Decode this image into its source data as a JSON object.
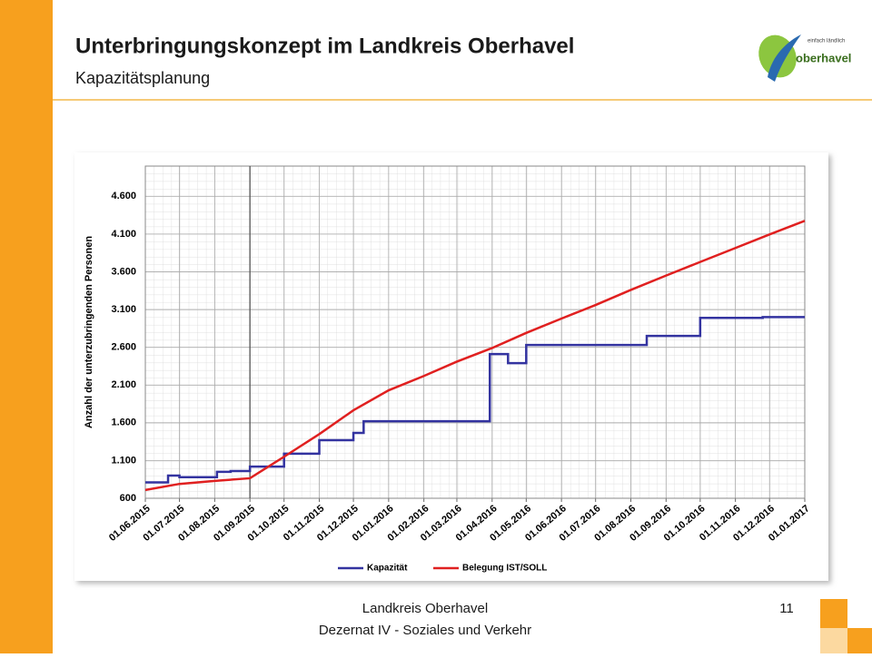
{
  "header": {
    "title": "Unterbringungskonzept im Landkreis Oberhavel",
    "subtitle": "Kapazitätsplanung",
    "logo_text": "oberhavel",
    "logo_tagline": "einfach ländlich"
  },
  "footer": {
    "line1": "Landkreis Oberhavel",
    "line2": "Dezernat IV - Soziales und Verkehr",
    "page": "11"
  },
  "chart_data": {
    "type": "line",
    "drawstyle_series0": "steps-post",
    "ylabel": "Anzahl der unterzubringenden Personen",
    "xlim": [
      "01.06.2015",
      "01.01.2017"
    ],
    "xticks": [
      "01.06.2015",
      "01.07.2015",
      "01.08.2015",
      "01.09.2015",
      "01.10.2015",
      "01.11.2015",
      "01.12.2015",
      "01.01.2016",
      "01.02.2016",
      "01.03.2016",
      "01.04.2016",
      "01.05.2016",
      "01.06.2016",
      "01.07.2016",
      "01.08.2016",
      "01.09.2016",
      "01.10.2016",
      "01.11.2016",
      "01.12.2016",
      "01.01.2017"
    ],
    "ylim": [
      600,
      5000
    ],
    "yticks": [
      600,
      {
        "value": 1100,
        "label": "1.100"
      },
      {
        "value": 1600,
        "label": "1.600"
      },
      {
        "value": 2100,
        "label": "2.100"
      },
      {
        "value": 2600,
        "label": "2.600"
      },
      {
        "value": 3100,
        "label": "3.100"
      },
      {
        "value": 3600,
        "label": "3.600"
      },
      {
        "value": 4100,
        "label": "4.100"
      },
      {
        "value": 4600,
        "label": "4.600"
      }
    ],
    "grid": true,
    "vline": "01.09.2015",
    "legend": "bottom",
    "series": [
      {
        "name": "Kapazität",
        "color": "#3333a0",
        "x": [
          "01.06.2015",
          "21.06.2015",
          "01.07.2015",
          "03.08.2015",
          "15.08.2015",
          "01.09.2015",
          "01.10.2015",
          "01.11.2015",
          "01.12.2015",
          "10.12.2015",
          "30.03.2016",
          "15.04.2016",
          "01.05.2016",
          "15.08.2016",
          "01.10.2016",
          "25.11.2016",
          "01.01.2017"
        ],
        "values": [
          810,
          900,
          880,
          950,
          960,
          1020,
          1190,
          1370,
          1465,
          1620,
          2510,
          2390,
          2630,
          2750,
          2990,
          3000,
          3000
        ]
      },
      {
        "name": "Belegung IST/SOLL",
        "color": "#e02020",
        "x": [
          "01.06.2015",
          "01.07.2015",
          "01.08.2015",
          "01.09.2015",
          "01.10.2015",
          "01.11.2015",
          "01.12.2015",
          "01.01.2016",
          "01.02.2016",
          "01.03.2016",
          "01.04.2016",
          "01.05.2016",
          "01.06.2016",
          "01.07.2016",
          "01.08.2016",
          "01.09.2016",
          "01.10.2016",
          "01.11.2016",
          "01.12.2016",
          "01.01.2017"
        ],
        "values": [
          710,
          790,
          830,
          865,
          1150,
          1450,
          1765,
          2030,
          2220,
          2410,
          2590,
          2790,
          2980,
          3160,
          3360,
          3550,
          3730,
          3915,
          4095,
          4275
        ]
      }
    ]
  }
}
